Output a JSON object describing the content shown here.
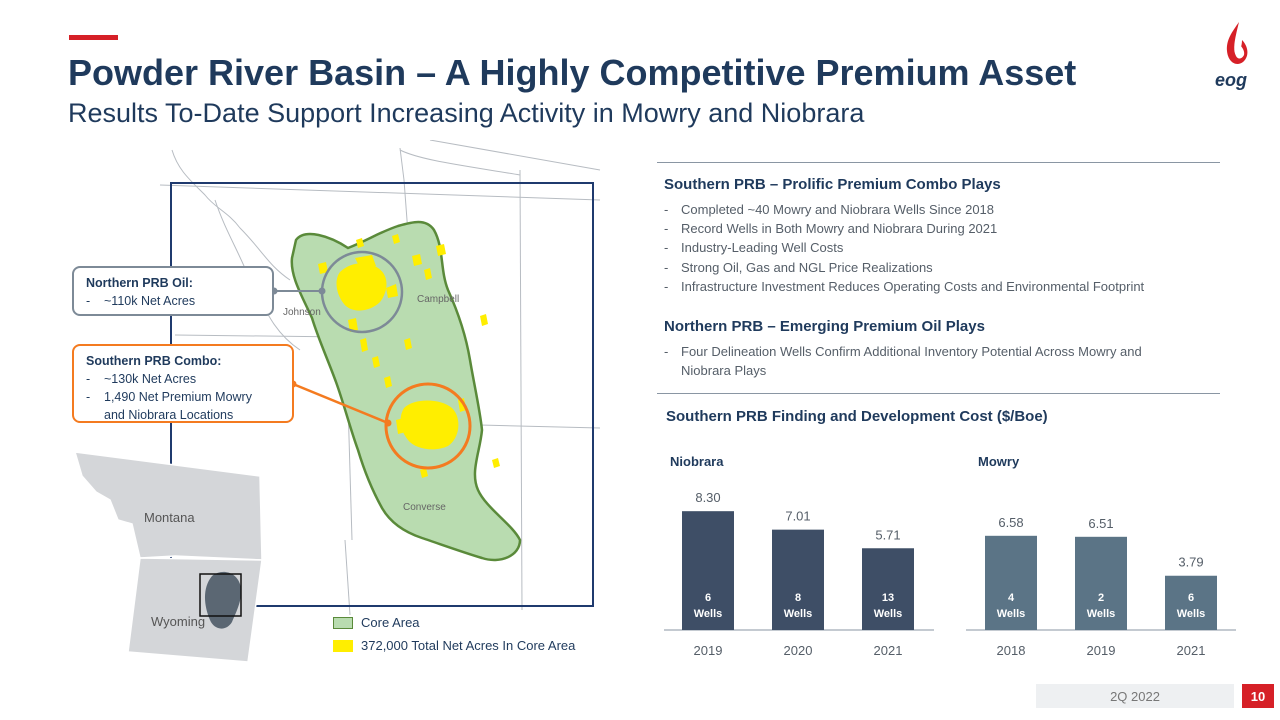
{
  "header": {
    "title": "Powder River Basin – A Highly Competitive Premium Asset",
    "subtitle": "Results To-Date Support Increasing Activity in Mowry and Niobrara",
    "logo_text": "eog"
  },
  "map": {
    "callouts": {
      "oil": {
        "title": "Northern PRB Oil:",
        "lines": [
          "~110k Net Acres"
        ]
      },
      "combo": {
        "title": "Southern PRB Combo:",
        "lines": [
          "~130k Net Acres",
          "1,490 Net Premium Mowry",
          "and Niobrara Locations"
        ]
      }
    },
    "counties": {
      "johnson": "Johnson",
      "campbell": "Campbell",
      "converse": "Converse"
    },
    "states": {
      "montana": "Montana",
      "wyoming": "Wyoming"
    },
    "legend": [
      {
        "label": "Core Area",
        "color": "#b9dcb0"
      },
      {
        "label": "372,000 Total Net Acres In Core Area",
        "color": "#ffee00"
      }
    ],
    "colors": {
      "core_area": "#b9dcb0",
      "core_border": "#5a8a3a",
      "acreage": "#ffee00",
      "oil_circle": "#7d8a97",
      "combo_circle": "#f47b20",
      "frame": "#1f3a6e"
    }
  },
  "sections": {
    "southern": {
      "heading": "Southern PRB – Prolific Premium Combo Plays",
      "bullets": [
        "Completed ~40 Mowry and Niobrara Wells Since 2018",
        "Record Wells in Both Mowry and Niobrara During 2021",
        "Industry-Leading Well Costs",
        "Strong Oil, Gas and NGL Price Realizations",
        "Infrastructure Investment Reduces Operating Costs and Environmental Footprint"
      ]
    },
    "northern": {
      "heading": "Northern PRB – Emerging Premium Oil Plays",
      "bullets": [
        [
          "Four Delineation Wells Confirm Additional Inventory Potential Across Mowry and",
          "Niobrara Plays"
        ]
      ]
    }
  },
  "chart_data": [
    {
      "type": "bar",
      "title": "Southern PRB Finding and Development Cost ($/Boe)",
      "panel_title": "Niobrara",
      "categories": [
        "2019",
        "2020",
        "2021"
      ],
      "values": [
        8.3,
        7.01,
        5.71
      ],
      "value_labels": [
        "8.30",
        "7.01",
        "5.71"
      ],
      "well_counts": [
        "6",
        "8",
        "13"
      ],
      "well_label": "Wells",
      "color": "#3e4e66",
      "ylim": [
        0,
        9.5
      ]
    },
    {
      "type": "bar",
      "panel_title": "Mowry",
      "categories": [
        "2018",
        "2019",
        "2021"
      ],
      "values": [
        6.58,
        6.51,
        3.79
      ],
      "value_labels": [
        "6.58",
        "6.51",
        "3.79"
      ],
      "well_counts": [
        "4",
        "2",
        "6"
      ],
      "well_label": "Wells",
      "color": "#5b7486",
      "ylim": [
        0,
        9.5
      ]
    }
  ],
  "footer": {
    "date": "2Q 2022",
    "page": "10"
  }
}
